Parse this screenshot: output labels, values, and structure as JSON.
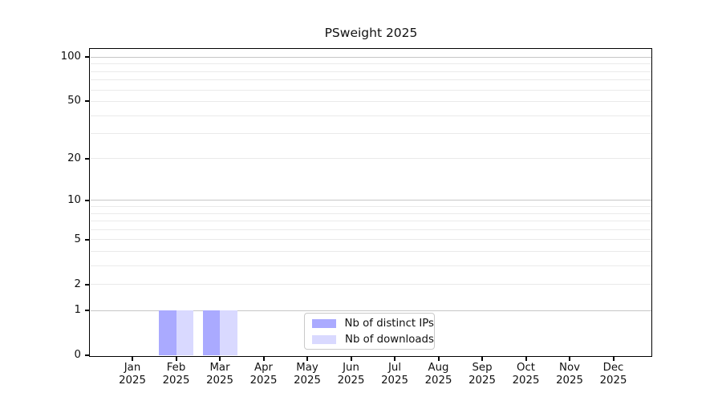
{
  "title": "PSweight 2025",
  "chart_data": {
    "type": "bar",
    "title": "PSweight 2025",
    "categories": [
      "Jan 2025",
      "Feb 2025",
      "Mar 2025",
      "Apr 2025",
      "May 2025",
      "Jun 2025",
      "Jul 2025",
      "Aug 2025",
      "Sep 2025",
      "Oct 2025",
      "Nov 2025",
      "Dec 2025"
    ],
    "month_labels": [
      "Jan",
      "Feb",
      "Mar",
      "Apr",
      "May",
      "Jun",
      "Jul",
      "Aug",
      "Sep",
      "Oct",
      "Nov",
      "Dec"
    ],
    "year_label": "2025",
    "series": [
      {
        "name": "Nb of distinct IPs",
        "color": "#aaaaff",
        "values": [
          0,
          1,
          1,
          0,
          0,
          0,
          0,
          0,
          0,
          0,
          0,
          0
        ]
      },
      {
        "name": "Nb of downloads",
        "color": "#d9d9ff",
        "values": [
          0,
          1,
          1,
          0,
          0,
          0,
          0,
          0,
          0,
          0,
          0,
          0
        ]
      }
    ],
    "y_axis": {
      "scale": "log1p",
      "ticks": [
        0,
        1,
        2,
        5,
        10,
        20,
        50,
        100
      ],
      "minor_ticks": [
        3,
        4,
        6,
        7,
        8,
        9,
        30,
        40,
        60,
        70,
        80,
        90
      ],
      "decade_values": [
        1,
        10,
        100
      ],
      "ylim": [
        0,
        111
      ]
    },
    "grid": {
      "major_color": "#c6c6c6",
      "minor_color": "#eaeaea"
    },
    "legend_position": "lower center"
  }
}
